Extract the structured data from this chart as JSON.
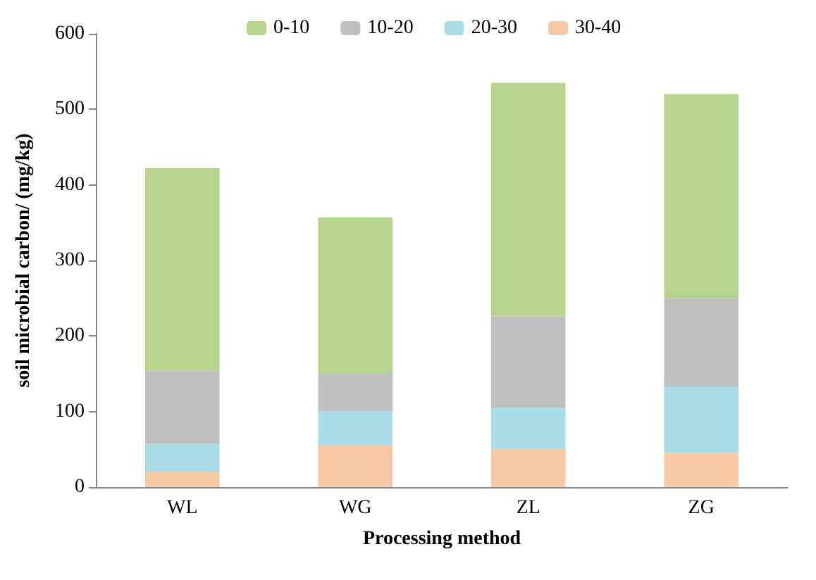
{
  "chart_data": {
    "type": "bar",
    "stacked": true,
    "xlabel": "Processing method",
    "ylabel": "soil microbial carbon/ (mg/kg)",
    "categories": [
      "WL",
      "WG",
      "ZL",
      "ZG"
    ],
    "series": [
      {
        "name": "30-40",
        "color": "#f8c9a4",
        "values": [
          20,
          55,
          50,
          45
        ]
      },
      {
        "name": "20-30",
        "color": "#aadde8",
        "values": [
          37,
          45,
          55,
          87
        ]
      },
      {
        "name": "10-20",
        "color": "#c0c0c0",
        "values": [
          97,
          50,
          121,
          118
        ]
      },
      {
        "name": "0-10",
        "color": "#b7d48f",
        "values": [
          268,
          207,
          309,
          270
        ]
      }
    ],
    "ylim": [
      0,
      600
    ],
    "yticks": [
      0,
      100,
      200,
      300,
      400,
      500,
      600
    ],
    "grid": false,
    "legend": "top"
  }
}
